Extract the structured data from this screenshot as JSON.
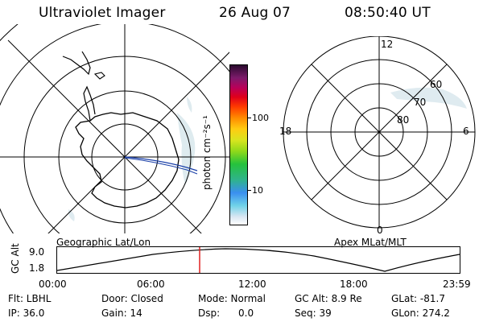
{
  "header": {
    "title": "Ultraviolet Imager",
    "date": "26 Aug 07",
    "time": "08:50:40 UT"
  },
  "geo_plot": {
    "label": "Geographic Lat/Lon"
  },
  "apex_plot": {
    "label": "Apex  MLat/MLT",
    "mlt_labels": {
      "top": "12",
      "left": "18",
      "right": "6",
      "bottom": "0"
    },
    "lat_labels": [
      "60",
      "70",
      "80"
    ]
  },
  "colorbar": {
    "unit_label": "photon cm⁻²s⁻¹",
    "ticks": [
      "100",
      "10"
    ]
  },
  "timeline": {
    "axis_title": "GC Alt",
    "y_labels": [
      "9.0",
      "1.8"
    ],
    "x_labels": [
      "00:00",
      "06:00",
      "12:00",
      "18:00",
      "23:59"
    ]
  },
  "footer": {
    "row1": {
      "flt": "Flt: LBHL",
      "door": "Door: Closed",
      "mode": "Mode: Normal",
      "gcalt": "GC Alt: 8.9 Re",
      "glat": "GLat: -81.7"
    },
    "row2": {
      "ip": "IP: 36.0",
      "gain": "Gain: 14",
      "dsp": "Dsp:      0.0",
      "seq": "Seq: 39",
      "glon": "GLon: 274.2"
    }
  },
  "colors": {
    "trace": "#1a3fa8",
    "marker": "#e02020"
  }
}
